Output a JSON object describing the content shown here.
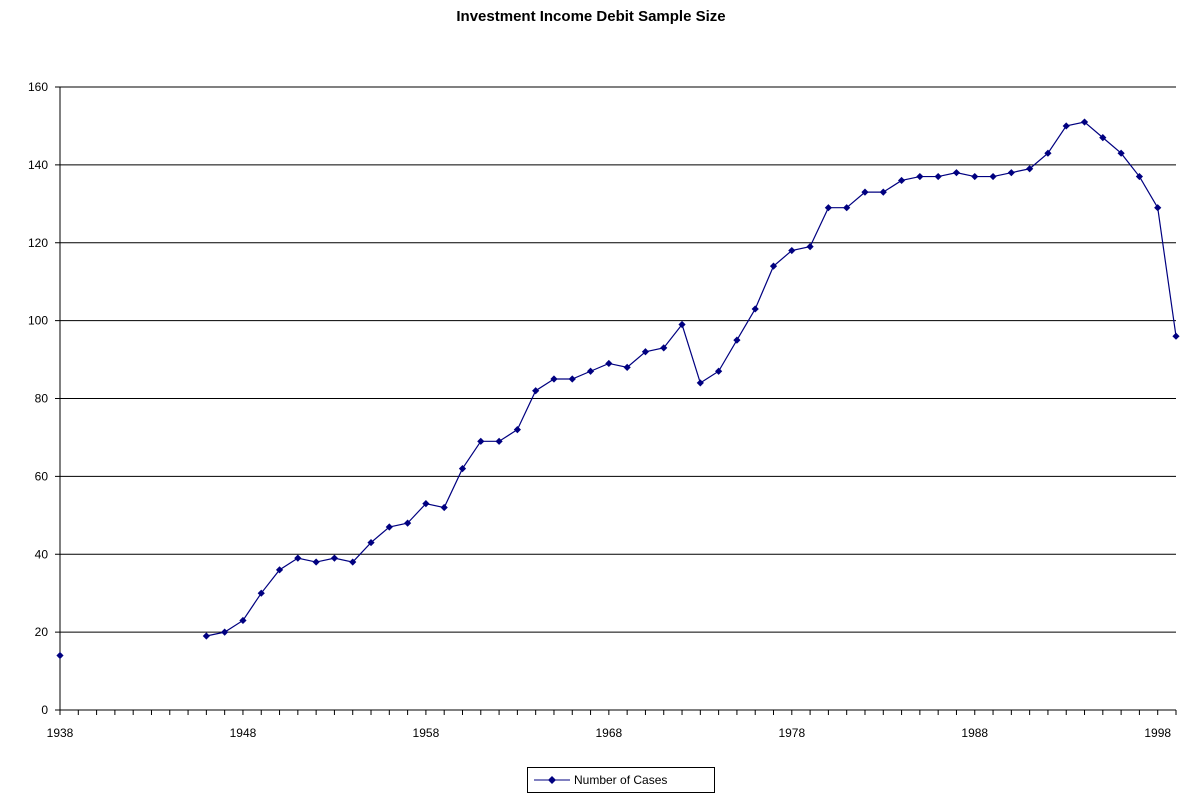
{
  "chart_data": {
    "type": "line",
    "title": "Investment Income Debit Sample Size",
    "xlabel": "",
    "ylabel": "",
    "xlim": [
      1938,
      1999
    ],
    "ylim": [
      0,
      160
    ],
    "x_ticks": [
      1938,
      1948,
      1958,
      1968,
      1978,
      1988,
      1998
    ],
    "y_ticks": [
      0,
      20,
      40,
      60,
      80,
      100,
      120,
      140,
      160
    ],
    "grid": true,
    "legend_position": "bottom",
    "series": [
      {
        "name": "Number of Cases",
        "color": "#000080",
        "marker": "diamond",
        "points": [
          [
            1938,
            14
          ],
          [
            1946,
            19
          ],
          [
            1947,
            20
          ],
          [
            1948,
            23
          ],
          [
            1949,
            30
          ],
          [
            1950,
            36
          ],
          [
            1951,
            39
          ],
          [
            1952,
            38
          ],
          [
            1953,
            39
          ],
          [
            1954,
            38
          ],
          [
            1955,
            43
          ],
          [
            1956,
            47
          ],
          [
            1957,
            48
          ],
          [
            1958,
            53
          ],
          [
            1959,
            52
          ],
          [
            1960,
            62
          ],
          [
            1961,
            69
          ],
          [
            1962,
            69
          ],
          [
            1963,
            72
          ],
          [
            1964,
            82
          ],
          [
            1965,
            85
          ],
          [
            1966,
            85
          ],
          [
            1967,
            87
          ],
          [
            1968,
            89
          ],
          [
            1969,
            88
          ],
          [
            1970,
            92
          ],
          [
            1971,
            93
          ],
          [
            1972,
            99
          ],
          [
            1973,
            84
          ],
          [
            1974,
            87
          ],
          [
            1975,
            95
          ],
          [
            1976,
            103
          ],
          [
            1977,
            114
          ],
          [
            1978,
            118
          ],
          [
            1979,
            119
          ],
          [
            1980,
            129
          ],
          [
            1981,
            129
          ],
          [
            1982,
            133
          ],
          [
            1983,
            133
          ],
          [
            1984,
            136
          ],
          [
            1985,
            137
          ],
          [
            1986,
            137
          ],
          [
            1987,
            138
          ],
          [
            1988,
            137
          ],
          [
            1989,
            137
          ],
          [
            1990,
            138
          ],
          [
            1991,
            139
          ],
          [
            1992,
            143
          ],
          [
            1993,
            150
          ],
          [
            1994,
            151
          ],
          [
            1995,
            147
          ],
          [
            1996,
            143
          ],
          [
            1997,
            137
          ],
          [
            1998,
            129
          ],
          [
            1999,
            96
          ]
        ]
      }
    ]
  }
}
